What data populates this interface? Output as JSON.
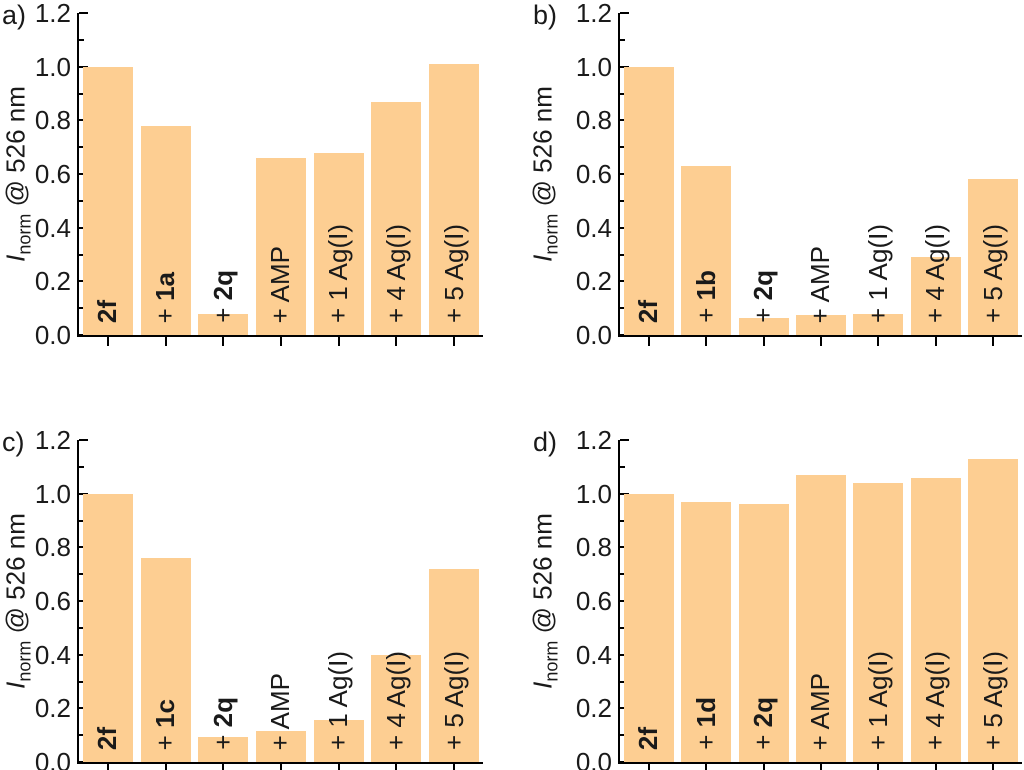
{
  "colors": {
    "bar_fill": "#FDCE92",
    "axis": "#000000",
    "text": "#1a1a1a",
    "background": "#ffffff"
  },
  "chart_data": [
    {
      "type": "bar",
      "panel_label": "a)",
      "ylabel": {
        "variable": "I",
        "subscript": "norm",
        "suffix": " @ 526 nm"
      },
      "ylim": [
        0,
        1.2
      ],
      "ytick_major": 0.2,
      "ytick_minor": 0.1,
      "grid": false,
      "bar_color": "#FDCE92",
      "categories": [
        [
          {
            "t": "2f",
            "b": true
          }
        ],
        [
          {
            "t": "+ ",
            "b": false
          },
          {
            "t": "1a",
            "b": true
          }
        ],
        [
          {
            "t": "+ ",
            "b": false
          },
          {
            "t": "2q",
            "b": true
          }
        ],
        [
          {
            "t": "+ AMP",
            "b": false
          }
        ],
        [
          {
            "t": "+ 1 Ag(I)",
            "b": false
          }
        ],
        [
          {
            "t": "+ 4 Ag(I)",
            "b": false
          }
        ],
        [
          {
            "t": "+ 5 Ag(I)",
            "b": false
          }
        ]
      ],
      "values": [
        1.0,
        0.78,
        0.08,
        0.66,
        0.68,
        0.87,
        1.01
      ]
    },
    {
      "type": "bar",
      "panel_label": "b)",
      "ylabel": {
        "variable": "I",
        "subscript": "norm",
        "suffix": " @ 526 nm"
      },
      "ylim": [
        0,
        1.2
      ],
      "ytick_major": 0.2,
      "ytick_minor": 0.1,
      "grid": false,
      "bar_color": "#FDCE92",
      "categories": [
        [
          {
            "t": "2f",
            "b": true
          }
        ],
        [
          {
            "t": "+ ",
            "b": false
          },
          {
            "t": "1b",
            "b": true
          }
        ],
        [
          {
            "t": "+ ",
            "b": false
          },
          {
            "t": "2q",
            "b": true
          }
        ],
        [
          {
            "t": "+ AMP",
            "b": false
          }
        ],
        [
          {
            "t": "+ 1 Ag(I)",
            "b": false
          }
        ],
        [
          {
            "t": "+ 4 Ag(I)",
            "b": false
          }
        ],
        [
          {
            "t": "+ 5 Ag(I)",
            "b": false
          }
        ]
      ],
      "values": [
        1.0,
        0.63,
        0.065,
        0.075,
        0.08,
        0.29,
        0.58
      ]
    },
    {
      "type": "bar",
      "panel_label": "c)",
      "ylabel": {
        "variable": "I",
        "subscript": "norm",
        "suffix": " @ 526 nm"
      },
      "ylim": [
        0,
        1.2
      ],
      "ytick_major": 0.2,
      "ytick_minor": 0.1,
      "grid": false,
      "bar_color": "#FDCE92",
      "categories": [
        [
          {
            "t": "2f",
            "b": true
          }
        ],
        [
          {
            "t": "+ ",
            "b": false
          },
          {
            "t": "1c",
            "b": true
          }
        ],
        [
          {
            "t": "+ ",
            "b": false
          },
          {
            "t": "2q",
            "b": true
          }
        ],
        [
          {
            "t": "+ AMP",
            "b": false
          }
        ],
        [
          {
            "t": "+ 1 Ag(I)",
            "b": false
          }
        ],
        [
          {
            "t": "+ 4 Ag(I)",
            "b": false
          }
        ],
        [
          {
            "t": "+ 5 Ag(I)",
            "b": false
          }
        ]
      ],
      "values": [
        1.0,
        0.76,
        0.095,
        0.115,
        0.155,
        0.4,
        0.72
      ]
    },
    {
      "type": "bar",
      "panel_label": "d)",
      "ylabel": {
        "variable": "I",
        "subscript": "norm",
        "suffix": " @ 526 nm"
      },
      "ylim": [
        0,
        1.2
      ],
      "ytick_major": 0.2,
      "ytick_minor": 0.1,
      "grid": false,
      "bar_color": "#FDCE92",
      "categories": [
        [
          {
            "t": "2f",
            "b": true
          }
        ],
        [
          {
            "t": "+ ",
            "b": false
          },
          {
            "t": "1d",
            "b": true
          }
        ],
        [
          {
            "t": "+ ",
            "b": false
          },
          {
            "t": "2q",
            "b": true
          }
        ],
        [
          {
            "t": "+ AMP",
            "b": false
          }
        ],
        [
          {
            "t": "+ 1 Ag(I)",
            "b": false
          }
        ],
        [
          {
            "t": "+ 4 Ag(I)",
            "b": false
          }
        ],
        [
          {
            "t": "+ 5 Ag(I)",
            "b": false
          }
        ]
      ],
      "values": [
        1.0,
        0.97,
        0.96,
        1.07,
        1.04,
        1.06,
        1.13
      ]
    }
  ]
}
